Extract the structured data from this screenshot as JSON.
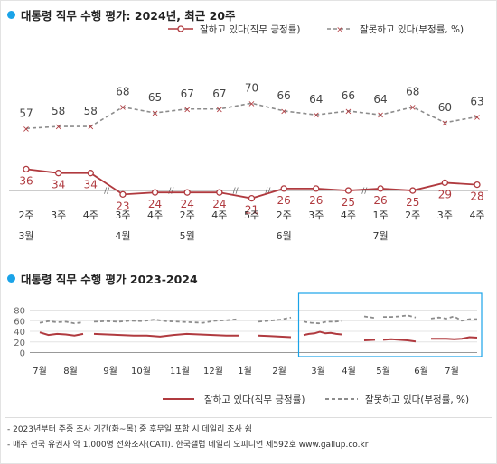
{
  "chart1": {
    "title": "대통령 직무 수행 평가: 2024년, 최근 20주",
    "legend_pos": "잘하고 있다(직무 긍정률)",
    "legend_neg": "잘못하고 있다(부정률, %)"
  },
  "chart2": {
    "title": "대통령 직무 수행 평가 2023-2024",
    "legend_pos": "잘하고 있다(직무 긍정률)",
    "legend_neg": "잘못하고 있다(부정률, %)"
  },
  "notes": {
    "line1": "- 2023년부터 주중 조사 기간(화~목) 중 후무일 포함 시 데일리 조사 쉼",
    "line2": "- 매주 전국 유권자 약 1,000명 전화조사(CATI). 한국갤럽 데일리 오피니언 제592호 www.gallup.co.kr"
  },
  "colors": {
    "positive": "#b03a3f",
    "negative": "#8c8c8c",
    "accent": "#1aa3e8"
  },
  "chart_data": [
    {
      "type": "line",
      "x": [
        "2주",
        "3주",
        "4주",
        "3주",
        "4주",
        "2주",
        "4주",
        "5주",
        "2주",
        "3주",
        "4주",
        "1주",
        "2주",
        "3주",
        "4주"
      ],
      "month_labels": [
        {
          "index": 0,
          "label": "3월"
        },
        {
          "index": 3,
          "label": "4월"
        },
        {
          "index": 5,
          "label": "5월"
        },
        {
          "index": 8,
          "label": "6월"
        },
        {
          "index": 11,
          "label": "7월"
        }
      ],
      "breaks_after": [
        2,
        4,
        6,
        7,
        10
      ],
      "series": [
        {
          "name": "잘하고 있다(직무 긍정률)",
          "values": [
            36,
            34,
            34,
            23,
            24,
            24,
            24,
            21,
            26,
            26,
            25,
            26,
            25,
            29,
            28
          ]
        },
        {
          "name": "잘못하고 있다(부정률, %)",
          "values": [
            57,
            58,
            58,
            68,
            65,
            67,
            67,
            70,
            66,
            64,
            66,
            64,
            68,
            60,
            63
          ]
        }
      ]
    },
    {
      "type": "line",
      "ylim": [
        0,
        80
      ],
      "y_ticks": [
        0,
        20,
        40,
        60,
        80
      ],
      "x_months": [
        "7월",
        "8월",
        "9월",
        "10월",
        "11월",
        "12월",
        "1월",
        "2월",
        "3월",
        "4월",
        "5월",
        "6월",
        "7월"
      ],
      "highlight_from_month_index": 8,
      "series": [
        {
          "name": "잘하고 있다(직무 긍정률)",
          "segments": [
            [
              38,
              33,
              35,
              34,
              32,
              35
            ],
            [
              35,
              34,
              33,
              32,
              32,
              30,
              33,
              35,
              34,
              33,
              32,
              32
            ],
            [
              32,
              31,
              30,
              29
            ],
            [
              33,
              35,
              36,
              39,
              36,
              37,
              35,
              34
            ],
            [
              23,
              24
            ],
            [
              24,
              25,
              24,
              23,
              21
            ],
            [
              26,
              26,
              26,
              25,
              26,
              29,
              28
            ]
          ]
        },
        {
          "name": "잘못하고 있다(부정률, %)",
          "segments": [
            [
              56,
              59,
              57,
              58,
              55,
              57
            ],
            [
              58,
              59,
              58,
              60,
              59,
              62,
              59,
              58,
              57,
              56,
              60,
              61,
              63
            ],
            [
              58,
              60,
              62,
              66
            ],
            [
              58,
              56,
              55,
              58,
              58,
              59
            ],
            [
              68,
              65
            ],
            [
              67,
              67,
              68,
              70,
              66
            ],
            [
              64,
              66,
              64,
              68,
              60,
              63,
              63
            ]
          ]
        }
      ]
    }
  ]
}
